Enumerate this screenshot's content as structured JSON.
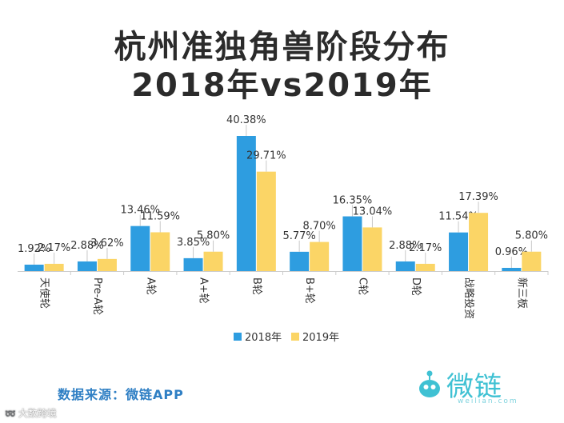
{
  "title_line1": "杭州准独角兽阶段分布",
  "title_line2": "2018年vs2019年",
  "source_text": "数据来源：微链APP",
  "logo_text": "微链",
  "logo_url": "weilian.com",
  "watermark_text": "大数跨境",
  "colors": {
    "series2018": "#2e9de0",
    "series2019": "#fbd566",
    "axis": "#cccccc",
    "label": "#333333"
  },
  "chart_data": {
    "type": "bar",
    "title": "杭州准独角兽阶段分布 2018年vs2019年",
    "categories": [
      "天使轮",
      "Pre-A轮",
      "A轮",
      "A+轮",
      "B轮",
      "B+轮",
      "C轮",
      "D轮",
      "战略投资",
      "新三板"
    ],
    "series": [
      {
        "name": "2018年",
        "values": [
          1.92,
          2.88,
          13.46,
          3.85,
          40.38,
          5.77,
          16.35,
          2.88,
          11.54,
          0.96
        ],
        "labels": [
          "1.92%",
          "2.88%",
          "13.46%",
          "3.85%",
          "40.38%",
          "5.77%",
          "16.35%",
          "2.88%",
          "11.54%",
          "0.96%"
        ]
      },
      {
        "name": "2019年",
        "values": [
          2.17,
          3.62,
          11.59,
          5.8,
          29.71,
          8.7,
          13.04,
          2.17,
          17.39,
          5.8
        ],
        "labels": [
          "2.17%",
          "3.62%",
          "11.59%",
          "5.80%",
          "29.71%",
          "8.70%",
          "13.04%",
          "2.17%",
          "17.39%",
          "5.80%"
        ]
      }
    ],
    "ylim": [
      0,
      40.38
    ],
    "xlabel": "",
    "ylabel": "",
    "legend": "bottom-center",
    "grid": false
  }
}
